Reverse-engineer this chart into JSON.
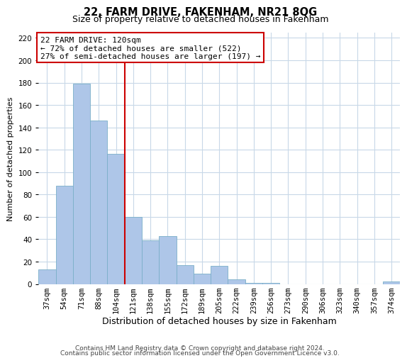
{
  "title": "22, FARM DRIVE, FAKENHAM, NR21 8QG",
  "subtitle": "Size of property relative to detached houses in Fakenham",
  "xlabel": "Distribution of detached houses by size in Fakenham",
  "ylabel": "Number of detached properties",
  "bar_labels": [
    "37sqm",
    "54sqm",
    "71sqm",
    "88sqm",
    "104sqm",
    "121sqm",
    "138sqm",
    "155sqm",
    "172sqm",
    "189sqm",
    "205sqm",
    "222sqm",
    "239sqm",
    "256sqm",
    "273sqm",
    "290sqm",
    "306sqm",
    "323sqm",
    "340sqm",
    "357sqm",
    "374sqm"
  ],
  "bar_values": [
    13,
    88,
    179,
    146,
    116,
    60,
    39,
    43,
    17,
    9,
    16,
    4,
    1,
    1,
    0,
    0,
    0,
    0,
    0,
    0,
    2
  ],
  "bar_color": "#aec6e8",
  "bar_edge_color": "#7aafc8",
  "vline_index": 5,
  "vline_color": "#cc0000",
  "annotation_line1": "22 FARM DRIVE: 120sqm",
  "annotation_line2": "← 72% of detached houses are smaller (522)",
  "annotation_line3": "27% of semi-detached houses are larger (197) →",
  "annotation_box_color": "#ffffff",
  "annotation_box_edge": "#cc0000",
  "ylim": [
    0,
    225
  ],
  "yticks": [
    0,
    20,
    40,
    60,
    80,
    100,
    120,
    140,
    160,
    180,
    200,
    220
  ],
  "footer1": "Contains HM Land Registry data © Crown copyright and database right 2024.",
  "footer2": "Contains public sector information licensed under the Open Government Licence v3.0.",
  "background_color": "#ffffff",
  "grid_color": "#c8d8e8",
  "title_fontsize": 10.5,
  "subtitle_fontsize": 9,
  "xlabel_fontsize": 9,
  "ylabel_fontsize": 8,
  "tick_fontsize": 7.5,
  "annotation_fontsize": 8,
  "footer_fontsize": 6.5
}
